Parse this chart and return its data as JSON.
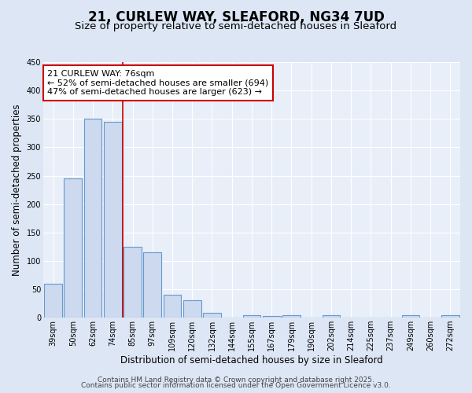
{
  "title": "21, CURLEW WAY, SLEAFORD, NG34 7UD",
  "subtitle": "Size of property relative to semi-detached houses in Sleaford",
  "xlabel": "Distribution of semi-detached houses by size in Sleaford",
  "ylabel": "Number of semi-detached properties",
  "categories": [
    "39sqm",
    "50sqm",
    "62sqm",
    "74sqm",
    "85sqm",
    "97sqm",
    "109sqm",
    "120sqm",
    "132sqm",
    "144sqm",
    "155sqm",
    "167sqm",
    "179sqm",
    "190sqm",
    "202sqm",
    "214sqm",
    "225sqm",
    "237sqm",
    "249sqm",
    "260sqm",
    "272sqm"
  ],
  "values": [
    60,
    245,
    350,
    345,
    125,
    115,
    40,
    30,
    8,
    0,
    5,
    3,
    5,
    0,
    5,
    0,
    0,
    0,
    5,
    0,
    5
  ],
  "bar_color": "#ccd9ee",
  "bar_edge_color": "#6699cc",
  "vline_color": "#cc0000",
  "annotation_text": "21 CURLEW WAY: 76sqm\n← 52% of semi-detached houses are smaller (694)\n47% of semi-detached houses are larger (623) →",
  "annotation_box_facecolor": "#ffffff",
  "annotation_box_edgecolor": "#cc0000",
  "ylim": [
    0,
    450
  ],
  "yticks": [
    0,
    50,
    100,
    150,
    200,
    250,
    300,
    350,
    400,
    450
  ],
  "footer1": "Contains HM Land Registry data © Crown copyright and database right 2025.",
  "footer2": "Contains public sector information licensed under the Open Government Licence v3.0.",
  "background_color": "#dce6f5",
  "plot_background_color": "#e8eff9",
  "title_fontsize": 12,
  "subtitle_fontsize": 9.5,
  "ylabel_fontsize": 8.5,
  "xlabel_fontsize": 8.5,
  "tick_fontsize": 7,
  "footer_fontsize": 6.5
}
